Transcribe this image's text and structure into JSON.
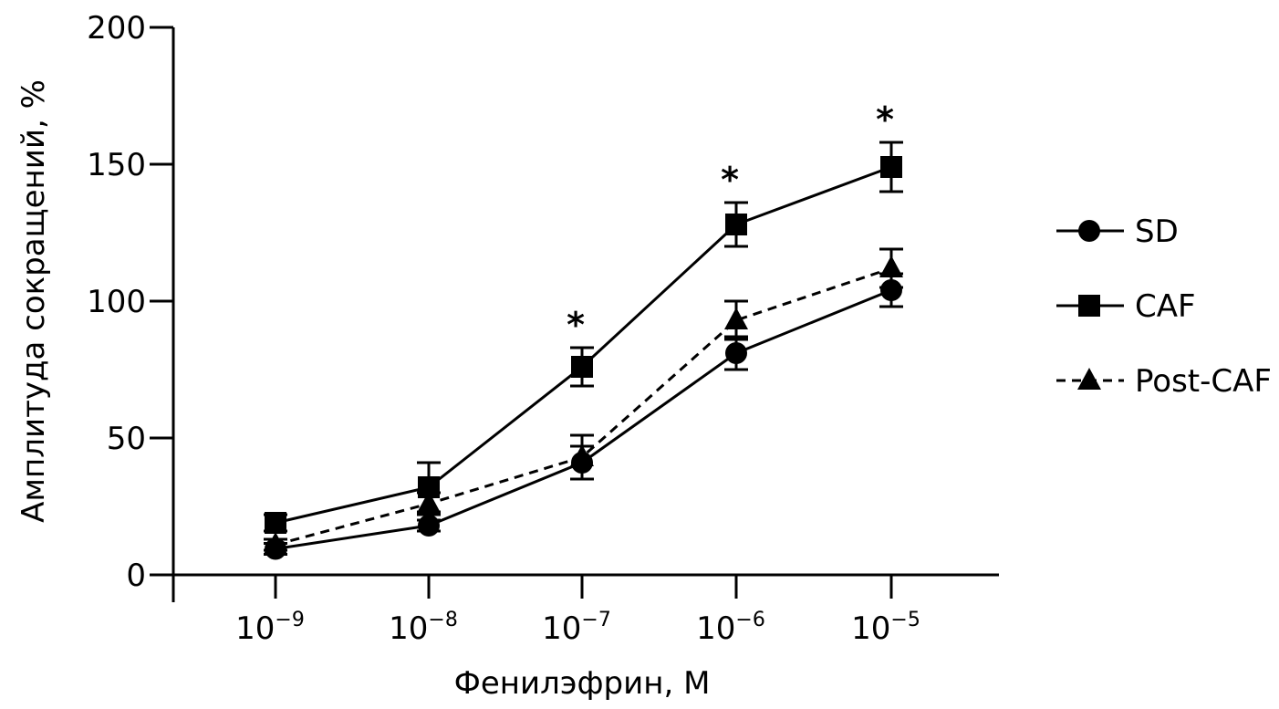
{
  "chart_data": {
    "type": "line",
    "title": "",
    "xlabel": "Фенилэфрин, М",
    "ylabel": "Амплитуда сокращений, %",
    "x_base": "10",
    "categories": [
      "−9",
      "−8",
      "−7",
      "−6",
      "−5"
    ],
    "ylim": [
      0,
      200
    ],
    "yticks": [
      0,
      50,
      100,
      150,
      200
    ],
    "grid": false,
    "legend_position": "right",
    "series": [
      {
        "name": "SD",
        "marker": "circle",
        "line": "solid",
        "values": [
          9.5,
          18,
          41,
          81,
          104
        ],
        "errors": [
          2,
          2,
          6,
          6,
          6
        ]
      },
      {
        "name": "CAF",
        "marker": "square",
        "line": "solid",
        "values": [
          19,
          32,
          76,
          128,
          149
        ],
        "errors": [
          3,
          9,
          7,
          8,
          9
        ]
      },
      {
        "name": "Post-CAF",
        "marker": "triangle",
        "line": "dashed",
        "values": [
          11,
          26,
          43,
          93,
          112
        ],
        "errors": [
          2,
          4,
          8,
          7,
          7
        ]
      }
    ],
    "annotations": [
      {
        "category_index": 2,
        "text": "*"
      },
      {
        "category_index": 3,
        "text": "*"
      },
      {
        "category_index": 4,
        "text": "*"
      }
    ]
  }
}
